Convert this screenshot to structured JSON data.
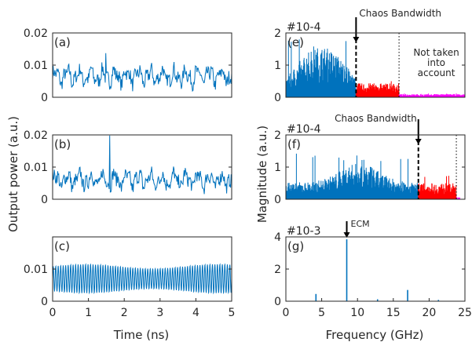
{
  "colors": {
    "blue": "#0072BD",
    "red": "#FF0000",
    "magenta": "#FF00FF",
    "axis": "#262626"
  },
  "labels": {
    "output_power": "Output power (a.u.)",
    "magnitude": "Magnitude (a.u.)",
    "time": "Time (ns)",
    "frequency": "Frequency (GHz)"
  },
  "chart_data": [
    {
      "id": "a",
      "type": "line",
      "panel_label": "(a)",
      "xlim": [
        0,
        5
      ],
      "ylim": [
        0,
        0.02
      ],
      "xticks": [],
      "yticks": [
        0,
        0.01,
        0.02
      ],
      "ytick_labels": [
        "0",
        "0.01",
        "0.02"
      ],
      "series": [
        {
          "signal": "chaotic",
          "mean": 0.0065,
          "amplitude": 0.003,
          "peak": 0.0137
        }
      ]
    },
    {
      "id": "b",
      "type": "line",
      "panel_label": "(b)",
      "xlim": [
        0,
        5
      ],
      "ylim": [
        0,
        0.02
      ],
      "xticks": [],
      "yticks": [
        0,
        0.01,
        0.02
      ],
      "ytick_labels": [
        "0",
        "0.01",
        "0.02"
      ],
      "series": [
        {
          "signal": "chaotic",
          "mean": 0.006,
          "amplitude": 0.003,
          "spike_x": 1.6,
          "spike_y": 0.0198
        }
      ]
    },
    {
      "id": "c",
      "type": "line",
      "panel_label": "(c)",
      "xlim": [
        0,
        5
      ],
      "ylim": [
        0,
        0.02
      ],
      "xticks": [
        0,
        1,
        2,
        3,
        4,
        5
      ],
      "xtick_labels": [
        "0",
        "1",
        "2",
        "3",
        "4",
        "5"
      ],
      "yticks": [
        0,
        0.01
      ],
      "ytick_labels": [
        "0",
        "0.01"
      ],
      "series": [
        {
          "signal": "periodic",
          "mean": 0.007,
          "amplitude": 0.0045,
          "cycles": 72
        }
      ]
    },
    {
      "id": "e",
      "type": "bar",
      "panel_label": "(e)",
      "xlim": [
        0,
        25
      ],
      "ylim": [
        0,
        2
      ],
      "multiplier": "#10-4",
      "xticks": [],
      "yticks": [
        0,
        1,
        2
      ],
      "ytick_labels": [
        "0",
        "1",
        "2"
      ],
      "regions": [
        {
          "from": 0,
          "to": 9.8,
          "color": "blue",
          "level": 0.9,
          "peak": 1.9
        },
        {
          "from": 9.8,
          "to": 15.8,
          "color": "red",
          "level": 0.35,
          "peak": 0.5
        },
        {
          "from": 15.8,
          "to": 25,
          "color": "magenta",
          "level": 0.08,
          "peak": 0.12
        }
      ],
      "markers": [
        {
          "x": 9.8,
          "style": "dashed",
          "label": "Chaos Bandwidth",
          "arrow": true
        },
        {
          "x": 15.8,
          "style": "dotted"
        }
      ],
      "annotations": [
        "Not taken",
        "into",
        "account"
      ]
    },
    {
      "id": "f",
      "type": "bar",
      "panel_label": "(f)",
      "xlim": [
        0,
        25
      ],
      "ylim": [
        0,
        2
      ],
      "multiplier": "#10-4",
      "xticks": [],
      "yticks": [
        0,
        1,
        2
      ],
      "ytick_labels": [
        "0",
        "1",
        "2"
      ],
      "regions": [
        {
          "from": 0,
          "to": 18.5,
          "color": "blue",
          "level": 0.6,
          "peak": 1.45
        },
        {
          "from": 18.5,
          "to": 23.8,
          "color": "red",
          "level": 0.4,
          "peak": 0.85
        },
        {
          "from": 23.8,
          "to": 24.3,
          "color": "magenta",
          "level": 0.05,
          "peak": 0.06
        }
      ],
      "markers": [
        {
          "x": 18.5,
          "style": "dashed",
          "label": "Chaos Bandwidth",
          "arrow": true
        },
        {
          "x": 23.8,
          "style": "dotted"
        }
      ]
    },
    {
      "id": "g",
      "type": "bar",
      "panel_label": "(g)",
      "xlim": [
        0,
        25
      ],
      "ylim": [
        0,
        4
      ],
      "multiplier": "#10-3",
      "xticks": [
        0,
        5,
        10,
        15,
        20,
        25
      ],
      "xtick_labels": [
        "0",
        "5",
        "10",
        "15",
        "20",
        "25"
      ],
      "yticks": [
        0,
        2,
        4
      ],
      "ytick_labels": [
        "0",
        "2",
        "4"
      ],
      "peaks": [
        {
          "x": 8.5,
          "y": 3.85
        },
        {
          "x": 4.2,
          "y": 0.45
        },
        {
          "x": 17.0,
          "y": 0.7
        },
        {
          "x": 12.8,
          "y": 0.12
        },
        {
          "x": 21.3,
          "y": 0.08
        }
      ],
      "markers": [
        {
          "x": 8.5,
          "label": "ECM",
          "arrow": true
        }
      ]
    }
  ]
}
